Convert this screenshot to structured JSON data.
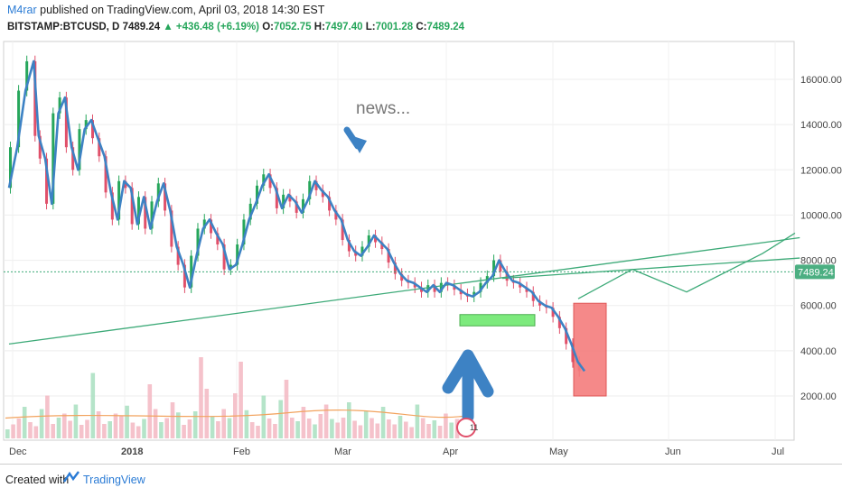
{
  "header": {
    "author": "M4rar",
    "published": " published on TradingView.com, April 03, 2018 14:30 EST",
    "symbol": "BITSTAMP:BTCUSD, D",
    "last": "7489.24",
    "change": "▲ +436.48 (+6.19%)",
    "o_label": "O:",
    "o_value": "7052.75",
    "h_label": "H:",
    "h_value": "7497.40",
    "l_label": "L:",
    "l_value": "7001.28",
    "c_label": "C:",
    "c_value": "7489.24"
  },
  "footer": {
    "created": "Created with",
    "brand": "TradingView"
  },
  "colors": {
    "up": "#26a65b",
    "down": "#e0506a",
    "price_line": "#3d82c4",
    "trend": "#3daa78",
    "price_badge": "#4caf82"
  },
  "chart_data": {
    "type": "line",
    "y_axis_ticks": [
      "16000.00",
      "14000.00",
      "12000.00",
      "10000.00",
      "8000.00",
      "6000.00",
      "4000.00",
      "2000.00"
    ],
    "y_ticks_values": [
      16000,
      14000,
      12000,
      10000,
      8000,
      6000,
      4000,
      2000
    ],
    "x_tick_labels": [
      "Dec",
      "2018",
      "Feb",
      "Mar",
      "Apr",
      "May",
      "Jun",
      "Jul"
    ],
    "current_price_label": "7489.24",
    "annotation_text": "news...",
    "event_marker": "11",
    "ylim": [
      0,
      17500
    ],
    "series": [
      {
        "values": [
          [
            0,
            11200
          ],
          [
            5,
            13000
          ],
          [
            10,
            15500
          ],
          [
            15,
            16800
          ],
          [
            18,
            13500
          ],
          [
            22,
            12500
          ],
          [
            26,
            10500
          ],
          [
            30,
            14500
          ],
          [
            34,
            15200
          ],
          [
            38,
            13000
          ],
          [
            42,
            12000
          ],
          [
            46,
            13800
          ],
          [
            50,
            14200
          ],
          [
            54,
            13400
          ],
          [
            58,
            12600
          ],
          [
            62,
            11000
          ],
          [
            66,
            9800
          ],
          [
            70,
            11500
          ],
          [
            74,
            11200
          ],
          [
            78,
            9600
          ],
          [
            82,
            10800
          ],
          [
            86,
            9400
          ],
          [
            90,
            10600
          ],
          [
            94,
            11400
          ],
          [
            98,
            10200
          ],
          [
            102,
            8600
          ],
          [
            106,
            7800
          ],
          [
            110,
            6800
          ],
          [
            114,
            8200
          ],
          [
            118,
            9400
          ],
          [
            122,
            9800
          ],
          [
            126,
            9200
          ],
          [
            130,
            8700
          ],
          [
            134,
            7600
          ],
          [
            138,
            7800
          ],
          [
            142,
            8700
          ],
          [
            146,
            9800
          ],
          [
            150,
            10500
          ],
          [
            154,
            11300
          ],
          [
            158,
            11800
          ],
          [
            162,
            11200
          ],
          [
            166,
            10300
          ],
          [
            170,
            10900
          ],
          [
            174,
            10600
          ],
          [
            178,
            10100
          ],
          [
            182,
            10700
          ],
          [
            186,
            11500
          ],
          [
            190,
            11100
          ],
          [
            194,
            10800
          ],
          [
            198,
            10200
          ],
          [
            202,
            9800
          ],
          [
            206,
            8900
          ],
          [
            210,
            8400
          ],
          [
            214,
            8200
          ],
          [
            218,
            8600
          ],
          [
            222,
            9100
          ],
          [
            226,
            8800
          ],
          [
            230,
            8500
          ],
          [
            234,
            7900
          ],
          [
            238,
            7400
          ],
          [
            242,
            7100
          ],
          [
            246,
            7000
          ],
          [
            250,
            6800
          ],
          [
            254,
            6600
          ],
          [
            258,
            6900
          ],
          [
            262,
            6600
          ],
          [
            266,
            7000
          ],
          [
            270,
            6900
          ],
          [
            274,
            6700
          ],
          [
            278,
            6500
          ],
          [
            282,
            6400
          ],
          [
            286,
            6600
          ],
          [
            290,
            7000
          ],
          [
            294,
            7300
          ],
          [
            298,
            8000
          ],
          [
            302,
            7500
          ],
          [
            306,
            7100
          ],
          [
            310,
            7000
          ],
          [
            314,
            6800
          ],
          [
            318,
            6600
          ],
          [
            322,
            6200
          ],
          [
            326,
            6000
          ],
          [
            330,
            5900
          ],
          [
            334,
            5500
          ],
          [
            338,
            5000
          ],
          [
            342,
            4300
          ],
          [
            346,
            3500
          ],
          [
            350,
            3100
          ]
        ]
      }
    ],
    "projection": [
      [
        0,
        6300
      ],
      [
        10,
        7600
      ],
      [
        20,
        6600
      ],
      [
        34,
        8300
      ],
      [
        40,
        9200
      ]
    ],
    "trendlines": [
      {
        "from": [
          0,
          4300
        ],
        "to": [
          382,
          9000
        ]
      },
      {
        "from": [
          300,
          7200
        ],
        "to": [
          382,
          8100
        ]
      }
    ],
    "boxes": [
      {
        "name": "support-zone",
        "color": "#7dea7d",
        "y": [
          5100,
          5600
        ]
      },
      {
        "name": "drop-zone",
        "color": "#f57d7d",
        "y": [
          2000,
          6100
        ]
      }
    ],
    "volume_values": [
      400,
      620,
      880,
      1400,
      720,
      540,
      1300,
      1900,
      640,
      920,
      1100,
      780,
      1500,
      600,
      820,
      2900,
      1200,
      640,
      760,
      1100,
      980,
      1450,
      700,
      540,
      860,
      2400,
      1300,
      720,
      900,
      1600,
      1150,
      600,
      840,
      1200,
      3600,
      2200,
      980,
      760,
      1300,
      900,
      2000,
      3400,
      1250,
      720,
      560,
      1900,
      880,
      640,
      1700,
      2600,
      920,
      760,
      1400,
      880,
      620,
      1080,
      1500,
      860,
      700,
      920,
      1600,
      780,
      580,
      1200,
      900,
      660,
      1400,
      840,
      620,
      1000,
      740,
      500,
      1500,
      900,
      640,
      800,
      560,
      1100,
      700,
      860
    ],
    "volume_ma_level": 900
  }
}
